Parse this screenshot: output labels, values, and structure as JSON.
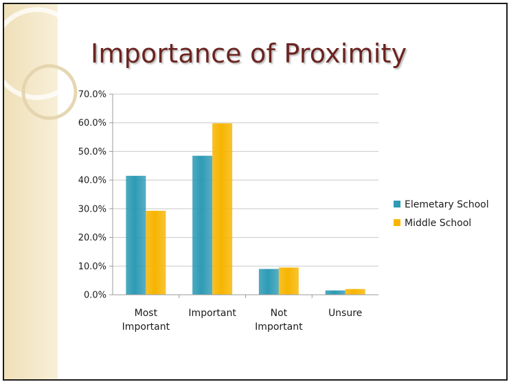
{
  "slide": {
    "title": "Importance of Proximity"
  },
  "colors": {
    "title": "#6b2420",
    "sidebar": "#f3e6c4",
    "grid": "#c8c8c8",
    "axis": "#9a9a9a"
  },
  "chart_data": {
    "type": "bar",
    "title": "",
    "xlabel": "",
    "ylabel": "",
    "categories": [
      [
        "Most",
        "Important"
      ],
      [
        "Important"
      ],
      [
        "Not",
        "Important"
      ],
      [
        "Unsure"
      ]
    ],
    "series": [
      {
        "name": "Elemetary School",
        "color": "#2e9bb5",
        "values": [
          41.5,
          48.5,
          9.0,
          1.5
        ]
      },
      {
        "name": "Middle School",
        "color": "#f7b500",
        "values": [
          29.3,
          59.8,
          9.5,
          2.0
        ]
      }
    ],
    "ylim": [
      0,
      70
    ],
    "yticks": [
      "0.0%",
      "10.0%",
      "20.0%",
      "30.0%",
      "40.0%",
      "50.0%",
      "60.0%",
      "70.0%"
    ],
    "grid": true,
    "legend_position": "right"
  }
}
